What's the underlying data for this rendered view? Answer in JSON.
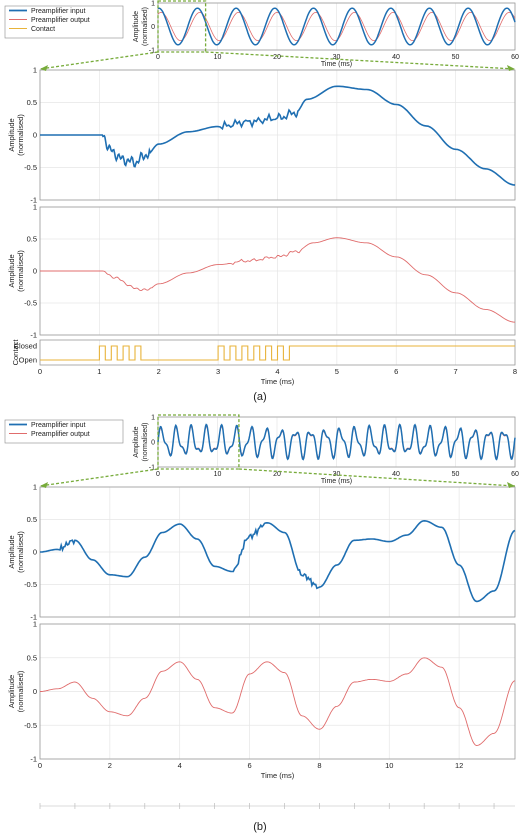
{
  "colors": {
    "input": "#1f6fb2",
    "output": "#e06c6c",
    "contact": "#e8b33a",
    "zoom": "#77ab3a",
    "grid": "#e6e6e6",
    "axis": "#333333",
    "text": "#222222"
  },
  "panels": {
    "a_label": "(a)",
    "b_label": "(b)"
  },
  "chart_data": [
    {
      "type": "line",
      "id": "a-overview",
      "xlabel": "Time (ms)",
      "ylabel": "Amplitude\n(normalised)",
      "xlim": [
        0,
        60
      ],
      "ylim": [
        -1,
        1
      ],
      "xticks": [
        0,
        10,
        20,
        30,
        40,
        50,
        60
      ],
      "yticks": [
        -1,
        0,
        1
      ],
      "grid": true,
      "legend": {
        "position": "left",
        "entries": [
          "Preamplifier input",
          "Preamplifier output",
          "Contact"
        ]
      },
      "zoom_window": [
        0,
        8
      ],
      "series": [
        {
          "name": "Preamplifier input",
          "signal": "sine",
          "period_ms": 6.5,
          "amplitude": 0.78,
          "phase_ms": 5.0
        },
        {
          "name": "Preamplifier output",
          "signal": "sine",
          "period_ms": 6.5,
          "amplitude": 0.6,
          "phase_ms": 5.4
        }
      ]
    },
    {
      "type": "line",
      "id": "a-input",
      "xlabel": "",
      "ylabel": "Amplitude\n(normalised)",
      "xlim": [
        0,
        8
      ],
      "ylim": [
        -1,
        1
      ],
      "xticks": [
        0,
        1,
        2,
        3,
        4,
        5,
        6,
        7,
        8
      ],
      "yticks": [
        -1,
        -0.5,
        0,
        0.5,
        1
      ],
      "grid": true,
      "series": [
        {
          "name": "Preamplifier input",
          "x": [
            0,
            1.05,
            1.2,
            1.4,
            1.6,
            1.8,
            2.0,
            2.5,
            3.0,
            3.5,
            4.0,
            4.3,
            4.5,
            5.0,
            5.5,
            6.0,
            6.5,
            7.0,
            7.5,
            8.0
          ],
          "y": [
            0,
            0,
            -0.25,
            -0.38,
            -0.42,
            -0.3,
            -0.14,
            0.05,
            0.13,
            0.2,
            0.26,
            0.34,
            0.55,
            0.75,
            0.7,
            0.47,
            0.14,
            -0.22,
            -0.52,
            -0.77
          ]
        }
      ]
    },
    {
      "type": "line",
      "id": "a-output",
      "xlabel": "",
      "ylabel": "Amplitude\n(normalised)",
      "xlim": [
        0,
        8
      ],
      "ylim": [
        -1,
        1
      ],
      "xticks": [
        0,
        1,
        2,
        3,
        4,
        5,
        6,
        7,
        8
      ],
      "yticks": [
        -1,
        -0.5,
        0,
        0.5,
        1
      ],
      "grid": true,
      "series": [
        {
          "name": "Preamplifier output",
          "x": [
            0,
            1.05,
            1.3,
            1.6,
            1.8,
            2.0,
            2.5,
            3.0,
            3.5,
            4.0,
            4.3,
            4.6,
            5.0,
            5.5,
            6.0,
            6.5,
            7.0,
            7.5,
            8.0
          ],
          "y": [
            0,
            0,
            -0.12,
            -0.27,
            -0.3,
            -0.2,
            -0.03,
            0.1,
            0.16,
            0.22,
            0.3,
            0.44,
            0.52,
            0.44,
            0.22,
            -0.06,
            -0.34,
            -0.6,
            -0.8
          ]
        }
      ]
    },
    {
      "type": "line",
      "id": "a-contact",
      "xlabel": "Time (ms)",
      "ylabel": "Contact",
      "xlim": [
        0,
        8
      ],
      "xticks": [
        0,
        1,
        2,
        3,
        4,
        5,
        6,
        7,
        8
      ],
      "ytick_labels": [
        "Open",
        "Closed"
      ],
      "grid": true,
      "series": [
        {
          "name": "Contact",
          "x": [
            0,
            1.0,
            1.0,
            1.1,
            1.1,
            1.2,
            1.2,
            1.3,
            1.3,
            1.4,
            1.4,
            1.5,
            1.5,
            1.6,
            1.6,
            1.7,
            1.7,
            1.8,
            1.8,
            3.0,
            3.0,
            3.1,
            3.1,
            3.2,
            3.2,
            3.3,
            3.3,
            3.4,
            3.4,
            3.5,
            3.5,
            3.6,
            3.6,
            3.7,
            3.7,
            3.8,
            3.8,
            3.9,
            3.9,
            4.0,
            4.0,
            4.1,
            4.1,
            4.2,
            4.2,
            4.3,
            4.3,
            8.0
          ],
          "y": [
            0,
            0,
            1,
            1,
            0,
            0,
            1,
            1,
            0,
            0,
            1,
            1,
            0,
            0,
            1,
            1,
            0,
            0,
            0,
            0,
            1,
            1,
            0,
            0,
            1,
            1,
            0,
            0,
            1,
            1,
            0,
            0,
            1,
            1,
            0,
            0,
            1,
            1,
            0,
            0,
            1,
            1,
            0,
            0,
            1,
            1,
            1,
            1
          ]
        }
      ]
    },
    {
      "type": "line",
      "id": "b-overview",
      "xlabel": "Time (ms)",
      "ylabel": "Amplitude\n(normalised)",
      "xlim": [
        0,
        60
      ],
      "ylim": [
        -1,
        1
      ],
      "xticks": [
        0,
        10,
        20,
        30,
        40,
        50,
        60
      ],
      "yticks": [
        -1,
        0,
        1
      ],
      "grid": true,
      "legend": {
        "position": "left",
        "entries": [
          "Preamplifier input",
          "Preamplifier output"
        ]
      },
      "zoom_window": [
        0,
        13.6
      ],
      "series": [
        {
          "name": "Preamplifier input",
          "signal": "beat",
          "period_ms": 2.5,
          "amplitude": 0.7
        },
        {
          "name": "Preamplifier output",
          "signal": "beat",
          "period_ms": 2.5,
          "amplitude": 0.62
        }
      ]
    },
    {
      "type": "line",
      "id": "b-input",
      "xlabel": "",
      "ylabel": "Amplitude\n(normalised)",
      "xlim": [
        0,
        13.6
      ],
      "ylim": [
        -1,
        1
      ],
      "xticks": [
        0,
        2,
        4,
        6,
        8,
        10,
        12
      ],
      "yticks": [
        -1,
        -0.5,
        0,
        0.5,
        1
      ],
      "grid": true,
      "series": [
        {
          "name": "Preamplifier input",
          "x": [
            0,
            0.5,
            1.0,
            1.5,
            2.0,
            2.5,
            3.0,
            3.5,
            4.0,
            4.5,
            5.0,
            5.5,
            6.0,
            6.5,
            7.0,
            7.5,
            8.0,
            8.5,
            9.0,
            9.5,
            10.0,
            10.5,
            11.0,
            11.5,
            12.0,
            12.5,
            13.0,
            13.6
          ],
          "y": [
            0,
            0.04,
            0.18,
            -0.12,
            -0.35,
            -0.38,
            -0.08,
            0.3,
            0.43,
            0.2,
            -0.22,
            -0.3,
            0.24,
            0.45,
            0.3,
            -0.35,
            -0.54,
            -0.2,
            0.18,
            0.2,
            0.16,
            0.26,
            0.48,
            0.38,
            -0.2,
            -0.76,
            -0.6,
            0.33
          ]
        }
      ]
    },
    {
      "type": "line",
      "id": "b-output",
      "xlabel": "Time (ms)",
      "ylabel": "Amplitude\n(normalised)",
      "xlim": [
        0,
        13.6
      ],
      "ylim": [
        -1,
        1
      ],
      "xticks": [
        0,
        2,
        4,
        6,
        8,
        10,
        12
      ],
      "yticks": [
        -1,
        -0.5,
        0,
        0.5,
        1
      ],
      "grid": true,
      "series": [
        {
          "name": "Preamplifier output",
          "x": [
            0,
            0.5,
            1.0,
            1.5,
            2.0,
            2.5,
            3.0,
            3.5,
            4.0,
            4.5,
            5.0,
            5.5,
            6.0,
            6.5,
            7.0,
            7.5,
            8.0,
            8.5,
            9.0,
            9.5,
            10.0,
            10.5,
            11.0,
            11.5,
            12.0,
            12.5,
            13.0,
            13.6
          ],
          "y": [
            0,
            0.04,
            0.14,
            -0.1,
            -0.3,
            -0.36,
            -0.1,
            0.3,
            0.44,
            0.18,
            -0.24,
            -0.32,
            0.26,
            0.44,
            0.28,
            -0.36,
            -0.56,
            -0.22,
            0.14,
            0.18,
            0.15,
            0.26,
            0.5,
            0.36,
            -0.24,
            -0.8,
            -0.62,
            0.16
          ]
        }
      ]
    }
  ]
}
